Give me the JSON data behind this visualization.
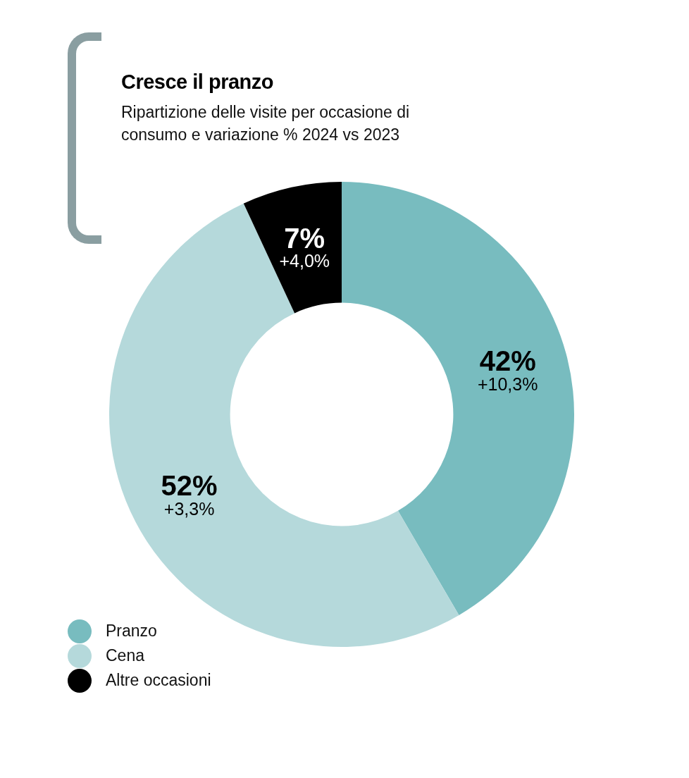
{
  "chart_data": {
    "type": "donut",
    "title": "Cresce il pranzo",
    "subtitle": "Ripartizione delle visite per occasione di consumo e variazione % 2024 vs 2023",
    "categories": [
      "Pranzo",
      "Cena",
      "Altre occasioni"
    ],
    "values": [
      42,
      52,
      7
    ],
    "colors": [
      "#78bcbf",
      "#b5d9db",
      "#000000"
    ],
    "value_labels": [
      "42%",
      "52%",
      "7%"
    ],
    "annotations": [
      {
        "text": "+10,3%",
        "x": "Pranzo"
      },
      {
        "text": "+3,3%",
        "x": "Cena"
      },
      {
        "text": "+4,0%",
        "x": "Altre occasioni"
      }
    ],
    "legend": "bottom left"
  }
}
